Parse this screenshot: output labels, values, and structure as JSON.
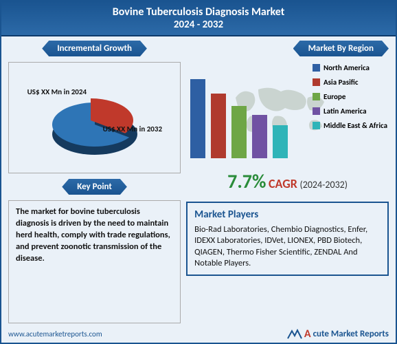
{
  "title": "Bovine Tuberculosis Diagnosis Market",
  "yearRange": "2024 - 2032",
  "incrementalGrowth": {
    "ribbon": "Incremental Growth",
    "slice1": {
      "label": "US$ XX Mn in 2024",
      "color": "#c0392b",
      "percent": 35
    },
    "slice2": {
      "label": "US$ XX Mn in 2032",
      "color": "#2e75b6",
      "percent": 65
    },
    "labelFontSize": 11
  },
  "keyPoint": {
    "ribbon": "Key Point",
    "text": "The market for bovine tuberculosis diagnosis is driven by the need to maintain herd health, comply with trade regulations, and prevent zoonotic transmission of the disease."
  },
  "marketByRegion": {
    "ribbon": "Market By Region",
    "bars": {
      "categories": [
        "North America",
        "Asia Pasific",
        "Europe",
        "Latin America",
        "Middle East & Africa"
      ],
      "values": [
        100,
        82,
        66,
        55,
        42
      ],
      "colors": [
        "#2e5fa3",
        "#b03a2e",
        "#6ea646",
        "#7052a3",
        "#2fb4b8"
      ],
      "maxHeightPx": 115
    },
    "mapColor": "#7a8a6a"
  },
  "cagr": {
    "value": "7.7%",
    "label": "CAGR",
    "period": "(2024-2032)"
  },
  "marketPlayers": {
    "heading": "Market Players",
    "text": "Bio-Rad Laboratories, Chembio Diagnostics,  Enfer, IDEXX Laboratories, IDVet, LIONEX, PBD Biotech, QIAGEN, Thermo Fisher Scientific, ZENDAL And Notable Players."
  },
  "footer": {
    "url": "www.acutemarketreports.com",
    "logoText": "Acute Market Reports"
  }
}
